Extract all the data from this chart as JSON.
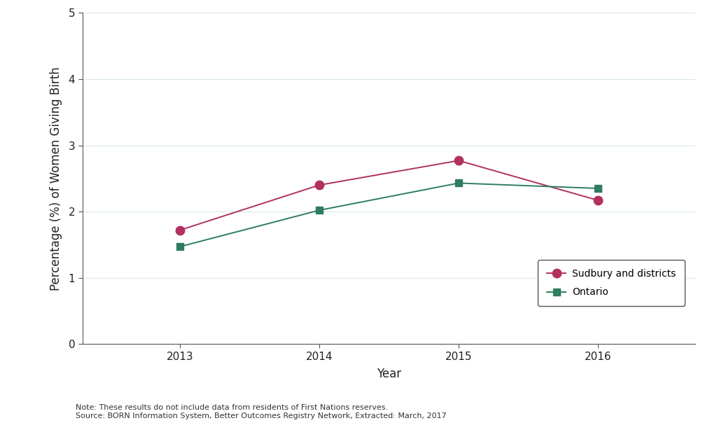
{
  "years": [
    2013,
    2014,
    2015,
    2016
  ],
  "sudbury_values": [
    1.72,
    2.4,
    2.77,
    2.17
  ],
  "ontario_values": [
    1.47,
    2.02,
    2.43,
    2.35
  ],
  "sudbury_color": "#b03060",
  "ontario_color": "#2e7d5e",
  "sudbury_label": "Sudbury and districts",
  "ontario_label": "Ontario",
  "xlabel": "Year",
  "ylabel": "Percentage (%) of Women Giving Birth",
  "ylim": [
    0,
    5
  ],
  "yticks": [
    0,
    1,
    2,
    3,
    4,
    5
  ],
  "xlim": [
    2012.3,
    2016.7
  ],
  "note_line1": "Note: These results do not include data from residents of First Nations reserves.",
  "note_line2": "Source: BORN Information System, Better Outcomes Registry Network, Extracted: March, 2017",
  "background_color": "#ffffff",
  "grid_color": "#daeaea",
  "linewidth": 1.4,
  "markersize_circle": 9,
  "markersize_square": 7,
  "label_fontsize": 12,
  "tick_fontsize": 11,
  "legend_fontsize": 10,
  "note_fontsize": 8
}
